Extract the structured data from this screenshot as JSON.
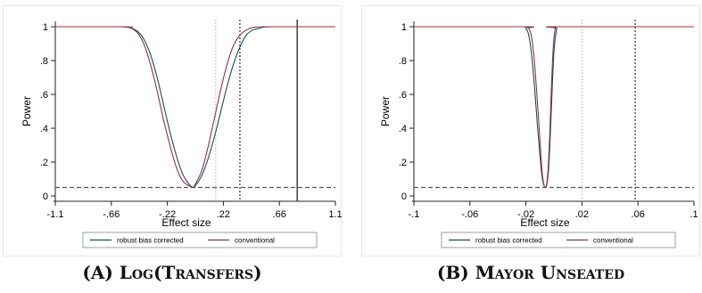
{
  "captions": {
    "a": "(A) Log(Transfers)",
    "b": "(B) Mayor Unseated"
  },
  "colors": {
    "robust": "#1a476f",
    "conventional": "#90353b",
    "reference_line": "#555555"
  },
  "chart_data": [
    {
      "type": "line",
      "xlabel": "Effect size",
      "ylabel": "Power",
      "xlim": [
        -1.1,
        1.1
      ],
      "ylim": [
        0,
        1
      ],
      "x_ticks": [
        -1.1,
        -0.66,
        -0.22,
        0.22,
        0.66,
        1.1
      ],
      "x_tick_labels": [
        "-1.1",
        "-.66",
        "-.22",
        ".22",
        ".66",
        "1.1"
      ],
      "y_ticks": [
        0,
        0.2,
        0.4,
        0.6,
        0.8,
        1
      ],
      "y_tick_labels": [
        "0",
        ".2",
        ".4",
        ".6",
        ".8",
        "1"
      ],
      "grid": false,
      "legend_position": "bottom",
      "series": [
        {
          "name": "robust bias corrected",
          "color": "#1a476f",
          "x": [
            -1.1,
            -0.6,
            -0.5,
            -0.45,
            -0.4,
            -0.35,
            -0.3,
            -0.25,
            -0.2,
            -0.15,
            -0.1,
            -0.05,
            -0.02,
            0.0,
            0.05,
            0.1,
            0.15,
            0.2,
            0.25,
            0.3,
            0.35,
            0.4,
            0.45,
            0.5,
            0.6,
            1.1
          ],
          "y": [
            1.0,
            1.0,
            0.99,
            0.97,
            0.92,
            0.83,
            0.7,
            0.54,
            0.38,
            0.24,
            0.13,
            0.07,
            0.05,
            0.06,
            0.12,
            0.22,
            0.35,
            0.5,
            0.65,
            0.78,
            0.88,
            0.95,
            0.98,
            0.99,
            1.0,
            1.0
          ]
        },
        {
          "name": "conventional",
          "color": "#90353b",
          "x": [
            -1.1,
            -0.55,
            -0.5,
            -0.45,
            -0.4,
            -0.35,
            -0.3,
            -0.25,
            -0.2,
            -0.15,
            -0.1,
            -0.05,
            -0.02,
            0.0,
            0.05,
            0.1,
            0.15,
            0.2,
            0.25,
            0.3,
            0.35,
            0.4,
            0.45,
            0.55,
            1.1
          ],
          "y": [
            1.0,
            1.0,
            0.99,
            0.96,
            0.89,
            0.77,
            0.62,
            0.45,
            0.3,
            0.17,
            0.09,
            0.06,
            0.05,
            0.07,
            0.15,
            0.29,
            0.46,
            0.63,
            0.78,
            0.89,
            0.95,
            0.98,
            0.995,
            1.0,
            1.0
          ]
        }
      ],
      "reference_lines": [
        {
          "orientation": "horizontal",
          "value": 0.05,
          "style": "dashed"
        },
        {
          "orientation": "vertical",
          "value": 0.16,
          "style": "dotted-light"
        },
        {
          "orientation": "vertical",
          "value": 0.35,
          "style": "dotted"
        },
        {
          "orientation": "vertical",
          "value": 0.8,
          "style": "solid"
        }
      ],
      "legend": [
        "robust bias corrected",
        "conventional"
      ]
    },
    {
      "type": "line",
      "xlabel": "Effect size",
      "ylabel": "Power",
      "xlim": [
        -0.1,
        0.1
      ],
      "ylim": [
        0,
        1
      ],
      "x_ticks": [
        -0.1,
        -0.06,
        -0.02,
        0.02,
        0.06,
        0.1
      ],
      "x_tick_labels": [
        "-.1",
        "-.06",
        "-.02",
        ".02",
        ".06",
        ".1"
      ],
      "y_ticks": [
        0,
        0.2,
        0.4,
        0.6,
        0.8,
        1
      ],
      "y_tick_labels": [
        "0",
        ".2",
        ".4",
        ".6",
        ".8",
        "1"
      ],
      "grid": false,
      "legend_position": "bottom",
      "series": [
        {
          "name": "robust bias corrected",
          "color": "#1a476f",
          "x": [
            -0.1,
            -0.023,
            -0.02,
            -0.018,
            -0.016,
            -0.014,
            -0.012,
            -0.01,
            -0.009,
            -0.008,
            -0.007,
            -0.006,
            -0.005,
            -0.004,
            -0.003,
            -0.002,
            0.0,
            0.002,
            0.003,
            0.1
          ],
          "y": [
            1.0,
            1.0,
            0.99,
            0.95,
            0.84,
            0.66,
            0.44,
            0.24,
            0.15,
            0.09,
            0.06,
            0.05,
            0.07,
            0.14,
            0.28,
            0.48,
            0.85,
            0.99,
            1.0,
            1.0
          ]
        },
        {
          "name": "conventional",
          "color": "#90353b",
          "x": [
            -0.1,
            -0.021,
            -0.018,
            -0.016,
            -0.014,
            -0.012,
            -0.01,
            -0.009,
            -0.008,
            -0.007,
            -0.006,
            -0.005,
            -0.004,
            -0.003,
            -0.002,
            -0.001,
            0.0,
            0.001,
            0.002,
            0.1
          ],
          "y": [
            1.0,
            1.0,
            0.99,
            0.94,
            0.8,
            0.58,
            0.33,
            0.2,
            0.11,
            0.06,
            0.05,
            0.08,
            0.18,
            0.36,
            0.6,
            0.8,
            0.93,
            0.99,
            1.0,
            1.0
          ]
        }
      ],
      "reference_lines": [
        {
          "orientation": "horizontal",
          "value": 0.05,
          "style": "dashed"
        },
        {
          "orientation": "vertical",
          "value": 0.02,
          "style": "dotted-light"
        },
        {
          "orientation": "vertical",
          "value": 0.058,
          "style": "dotted"
        }
      ],
      "legend": [
        "robust bias corrected",
        "conventional"
      ]
    }
  ]
}
